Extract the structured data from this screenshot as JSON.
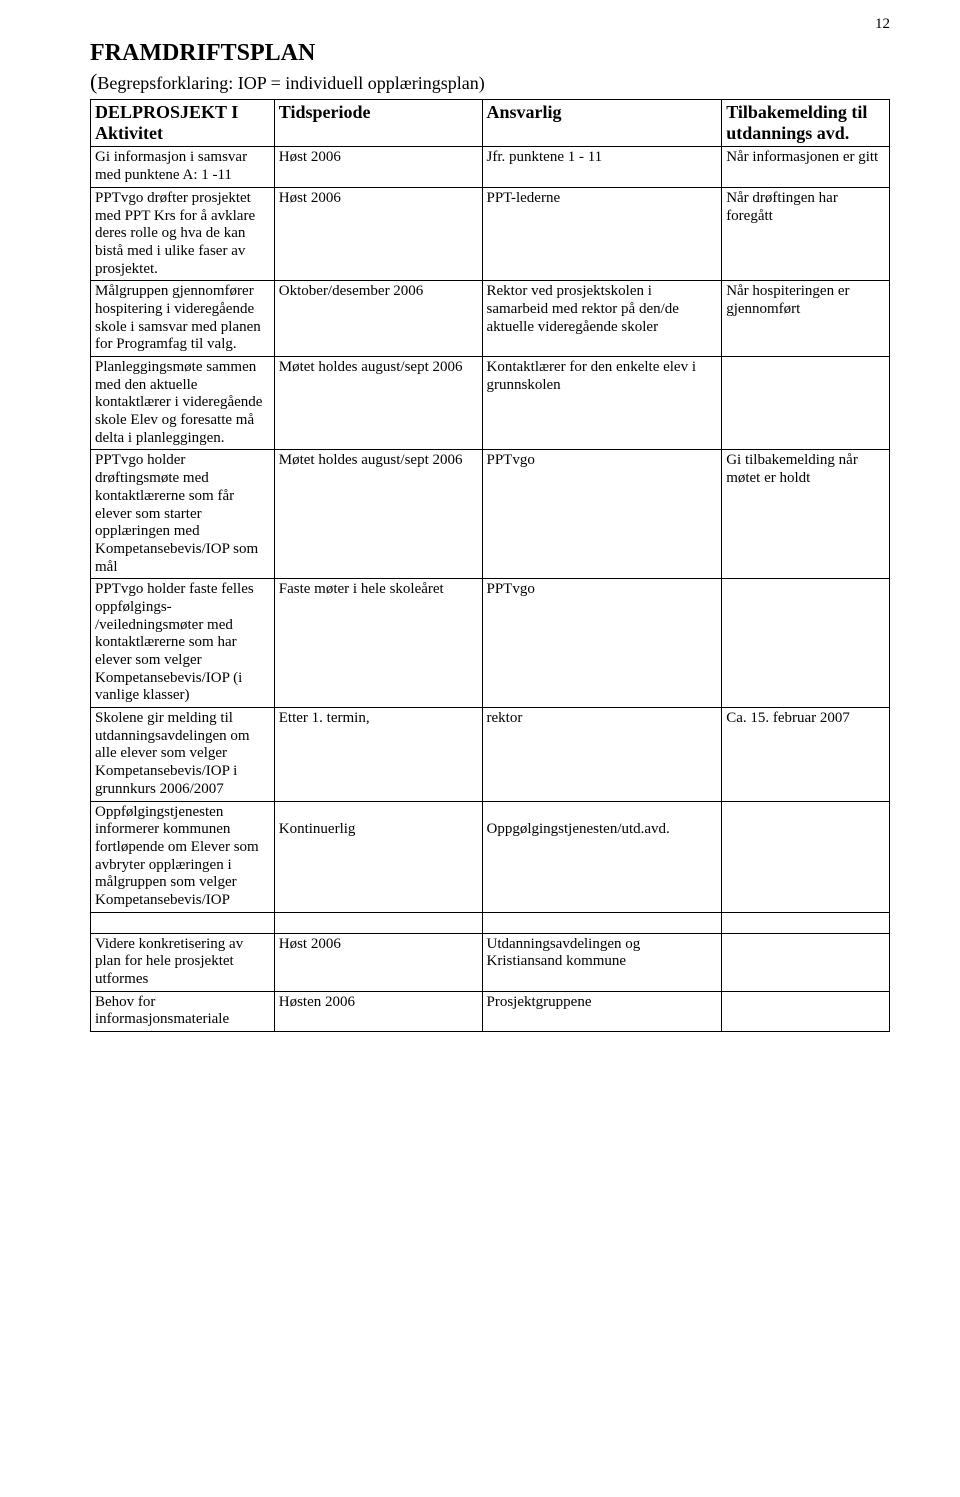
{
  "pageNumber": "12",
  "heading": "FRAMDRIFTSPLAN",
  "subHeading": "Begrepsforklaring: IOP = individuell opplæringsplan)",
  "openParen": "(",
  "table": {
    "headers": {
      "c1": "DELPROSJEKT I Aktivitet",
      "c2": "Tidsperiode",
      "c3": "Ansvarlig",
      "c4": "Tilbakemelding til utdannings avd."
    },
    "rows": [
      {
        "c1": "Gi informasjon i samsvar med punktene A: 1 -11",
        "c2": "Høst  2006",
        "c3": "Jfr. punktene 1 - 11",
        "c4": "Når informasjonen er gitt"
      },
      {
        "c1": "PPTvgo drøfter prosjektet med PPT Krs for å avklare deres rolle og hva de kan bistå med i ulike faser av prosjektet.",
        "c2": "Høst 2006",
        "c3": "PPT-lederne",
        "c4": "Når drøftingen har foregått"
      },
      {
        "c1": "Målgruppen gjennomfører hospitering i videregående skole i samsvar med planen for Programfag til valg.",
        "c2": "Oktober/desember 2006",
        "c3": "Rektor ved prosjektskolen i samarbeid med rektor på den/de aktuelle videregående skoler",
        "c4": "Når hospiteringen er gjennomført"
      },
      {
        "c1": "Planleggingsmøte sammen med den aktuelle kontaktlærer i videregående skole Elev og foresatte må delta i planleggingen.",
        "c2": "Møtet holdes august/sept 2006",
        "c3": "Kontaktlærer for den enkelte elev i grunnskolen",
        "c4": ""
      },
      {
        "c1": "PPTvgo holder drøftingsmøte med kontaktlærerne som får elever som starter opplæringen med Kompetansebevis/IOP som mål",
        "c2": "Møtet holdes august/sept 2006",
        "c3": "PPTvgo",
        "c4": "Gi tilbakemelding når møtet er holdt"
      },
      {
        "c1": "PPTvgo holder faste felles oppfølgings- /veiledningsmøter med kontaktlærerne som har elever som velger Kompetansebevis/IOP (i vanlige klasser)",
        "c2": "Faste møter i hele skoleåret",
        "c3": "PPTvgo",
        "c4": ""
      },
      {
        "c1": "Skolene gir melding til utdanningsavdelingen om alle elever som velger Kompetansebevis/IOP i grunnkurs 2006/2007",
        "c2": "Etter 1. termin,",
        "c3": "rektor",
        "c4": "Ca. 15. februar 2007"
      },
      {
        "c1": "Oppfølgingstjenesten informerer kommunen fortløpende om Elever som avbryter opplæringen i målgruppen som velger Kompetansebevis/IOP",
        "c2": "\nKontinuerlig",
        "c3": "\nOppgølgingstjenesten/utd.avd.",
        "c4": ""
      }
    ],
    "rows2": [
      {
        "c1": "Videre konkretisering av plan for hele prosjektet utformes",
        "c2": "Høst  2006",
        "c3": "Utdanningsavdelingen og Kristiansand kommune",
        "c4": ""
      },
      {
        "c1": "Behov for informasjonsmateriale",
        "c2": "Høsten 2006",
        "c3": "Prosjektgruppene",
        "c4": ""
      }
    ]
  }
}
